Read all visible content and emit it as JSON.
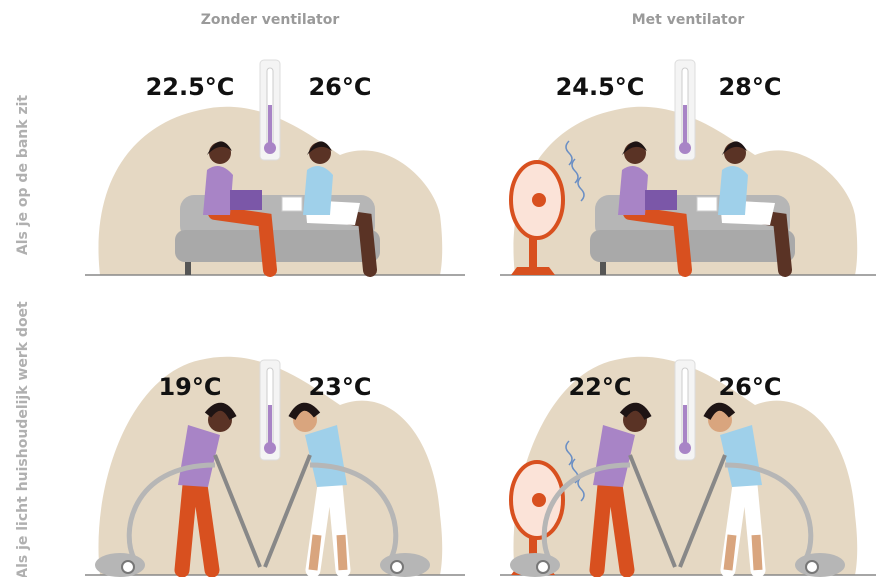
{
  "columns": [
    "Zonder ventilator",
    "Met ventilator"
  ],
  "rows": [
    {
      "label": "Als je op de bank zit",
      "temperatures": [
        [
          "22.5°C",
          "26°C"
        ],
        [
          "24.5°C",
          "28°C"
        ]
      ]
    },
    {
      "label": "Als je licht huishoudelijk werk doet",
      "temperatures": [
        [
          "19°C",
          "23°C"
        ],
        [
          "22°C",
          "26°C"
        ]
      ]
    }
  ]
}
